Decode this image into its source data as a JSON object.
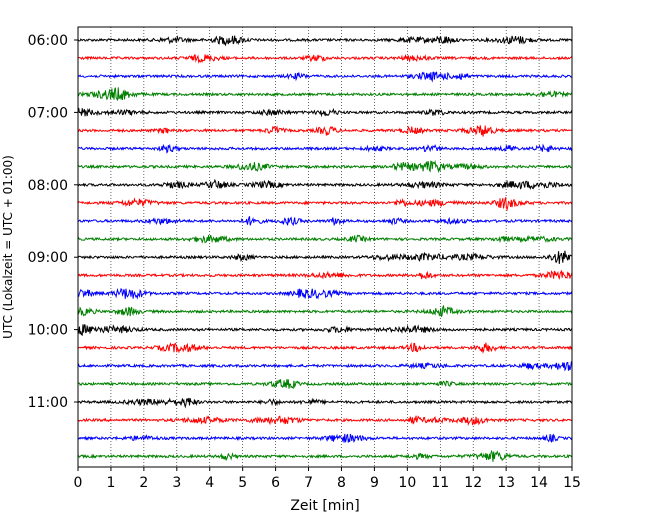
{
  "chart_data": {
    "type": "line",
    "title": "",
    "xlabel": "Zeit  [min]",
    "ylabel": "UTC (Lokalzeit = UTC + 01:00)",
    "xlim": [
      0,
      15
    ],
    "x_ticks": [
      "0",
      "1",
      "2",
      "3",
      "4",
      "5",
      "6",
      "7",
      "8",
      "9",
      "10",
      "11",
      "12",
      "13",
      "14",
      "15"
    ],
    "y_tick_labels": [
      "06:00",
      "07:00",
      "08:00",
      "09:00",
      "10:00",
      "11:00"
    ],
    "trace_start_time": "06:00",
    "trace_interval_minutes": 15,
    "trace_count": 24,
    "trace_colors": [
      "#000000",
      "#ff0000",
      "#0000ff",
      "#008000"
    ],
    "grid": "vertical dotted lines at each minute",
    "legend": "none"
  }
}
